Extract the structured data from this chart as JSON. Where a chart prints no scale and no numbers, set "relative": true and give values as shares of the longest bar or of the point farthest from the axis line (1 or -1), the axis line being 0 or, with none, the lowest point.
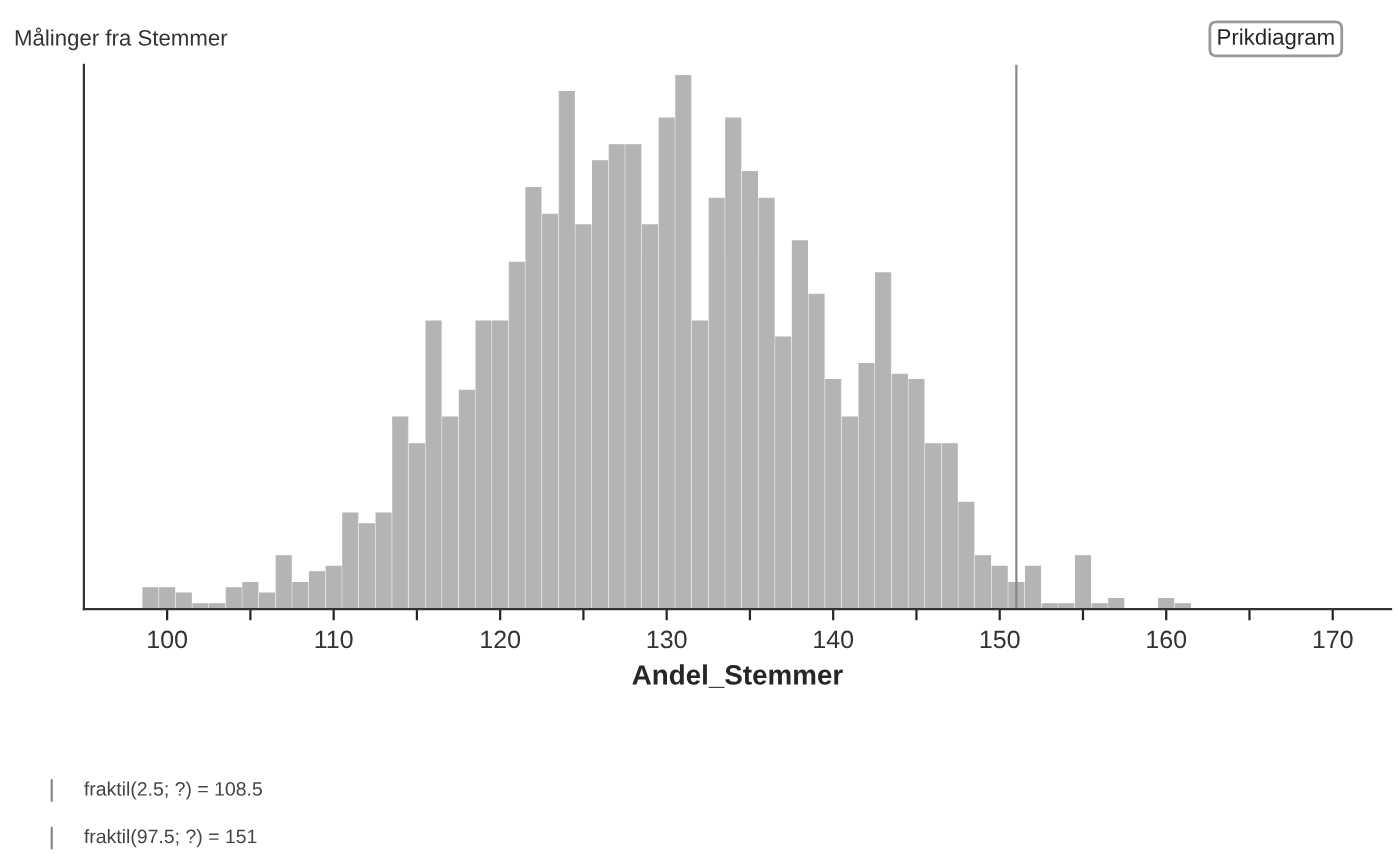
{
  "chart_data": {
    "type": "bar",
    "relative": true,
    "title": "Målinger fra Stemmer",
    "xlabel": "Andel_Stemmer",
    "x": [
      99,
      100,
      101,
      102,
      103,
      104,
      105,
      106,
      107,
      108,
      109,
      110,
      111,
      112,
      113,
      114,
      115,
      116,
      117,
      118,
      119,
      120,
      121,
      122,
      123,
      124,
      125,
      126,
      127,
      128,
      129,
      130,
      131,
      132,
      133,
      134,
      135,
      136,
      137,
      138,
      139,
      140,
      141,
      142,
      143,
      144,
      145,
      146,
      147,
      148,
      149,
      150,
      151,
      152,
      153,
      154,
      155,
      156,
      157,
      158,
      159,
      160,
      161
    ],
    "values": [
      0.04,
      0.04,
      0.03,
      0.01,
      0.01,
      0.04,
      0.05,
      0.03,
      0.1,
      0.05,
      0.07,
      0.08,
      0.18,
      0.16,
      0.18,
      0.36,
      0.31,
      0.54,
      0.36,
      0.41,
      0.54,
      0.54,
      0.65,
      0.79,
      0.74,
      0.97,
      0.72,
      0.84,
      0.87,
      0.87,
      0.72,
      0.92,
      1.0,
      0.54,
      0.77,
      0.92,
      0.82,
      0.77,
      0.51,
      0.69,
      0.59,
      0.43,
      0.36,
      0.46,
      0.63,
      0.44,
      0.43,
      0.31,
      0.31,
      0.2,
      0.1,
      0.08,
      0.05,
      0.08,
      0.01,
      0.01,
      0.1,
      0.01,
      0.02,
      0,
      0,
      0.02,
      0.01
    ],
    "color": "#b4b4b4",
    "xlim": [
      95,
      173.5
    ],
    "xticks": [
      100,
      {
        "value": 105,
        "label": null
      },
      110,
      {
        "value": 115,
        "label": null
      },
      120,
      {
        "value": 125,
        "label": null
      },
      130,
      {
        "value": 135,
        "label": null
      },
      140,
      {
        "value": 145,
        "label": null
      },
      150,
      {
        "value": 155,
        "label": null
      },
      160,
      {
        "value": 165,
        "label": null
      },
      170
    ],
    "tick_labels": "x",
    "grid": false,
    "legend": false,
    "ref_lines": [
      {
        "axis": "x",
        "value": 151,
        "color": "#888888"
      }
    ],
    "annotations": [
      "Prikdiagram",
      "fraktil(2.5; ?) = 108.5",
      "fraktil(97.5; ?) = 151"
    ]
  }
}
